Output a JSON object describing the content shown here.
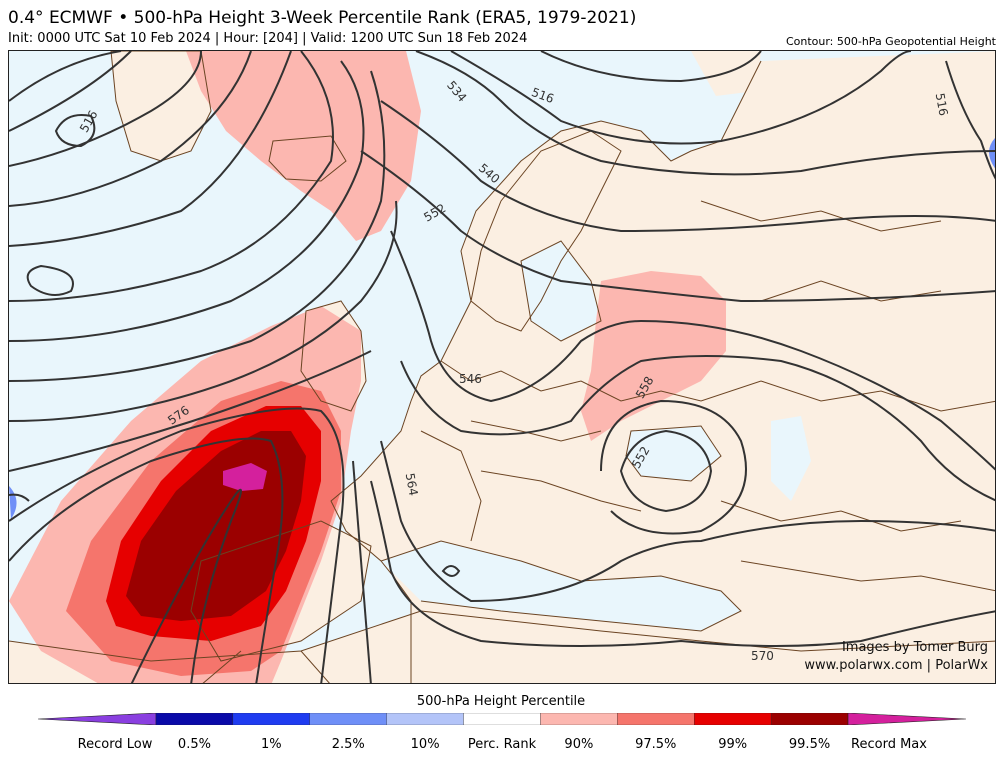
{
  "header": {
    "title": "0.4° ECMWF • 500-hPa Height 3-Week Percentile Rank (ERA5, 1979-2021)",
    "subtitle": "Init: 0000 UTC Sat 10 Feb 2024 | Hour: [204] | Valid: 1200 UTC Sun 18 Feb 2024",
    "contour_note": "Contour: 500-hPa Geopotential Height"
  },
  "map": {
    "colors": {
      "ocean": "#e9f6fc",
      "land": "#fbefe2",
      "border": "#6b4423",
      "contour": "#333333"
    },
    "contour_labels": [
      "516",
      "534",
      "516",
      "516",
      "540",
      "552",
      "546",
      "576",
      "564",
      "558",
      "552",
      "570"
    ],
    "credits": {
      "author": "Images by Tomer Burg",
      "site": "www.polarwx.com | PolarWx"
    }
  },
  "colorbar": {
    "title": "500-hPa Height Percentile",
    "colors": [
      "#8a3fe0",
      "#0a0aa8",
      "#1f3cf0",
      "#6f8ff7",
      "#b3c4f8",
      "#ffffff",
      "#fcb7b0",
      "#f5756c",
      "#e60000",
      "#9b0000",
      "#d4209d"
    ],
    "labels": [
      "Record Low",
      "0.5%",
      "1%",
      "2.5%",
      "10%",
      "Perc. Rank",
      "90%",
      "97.5%",
      "99%",
      "99.5%",
      "Record Max"
    ]
  }
}
